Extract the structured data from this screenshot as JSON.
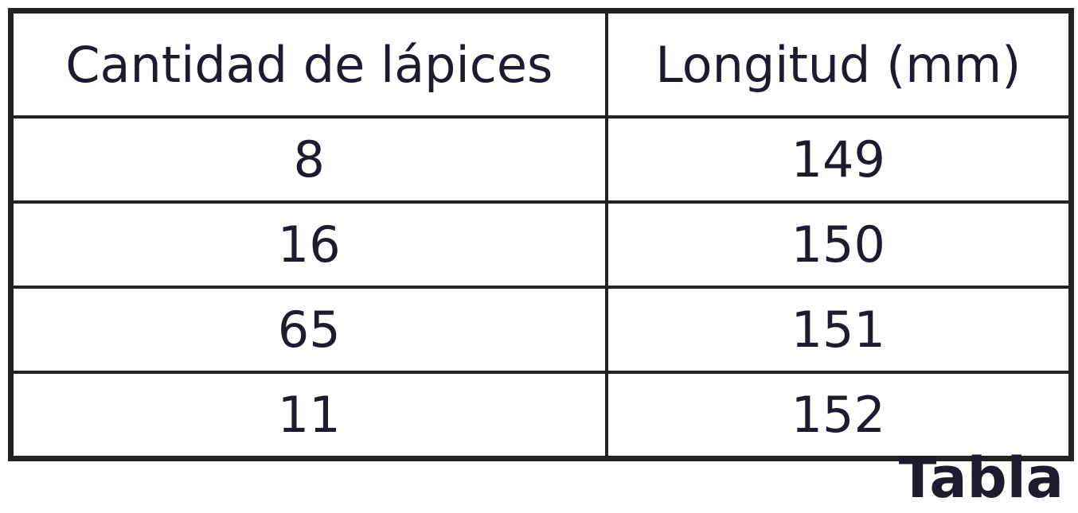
{
  "chart_data": {
    "type": "table",
    "columns": [
      "Cantidad de lápices",
      "Longitud (mm)"
    ],
    "rows": [
      [
        "8",
        "149"
      ],
      [
        "16",
        "150"
      ],
      [
        "65",
        "151"
      ],
      [
        "11",
        "152"
      ]
    ]
  },
  "caption": "Tabla"
}
